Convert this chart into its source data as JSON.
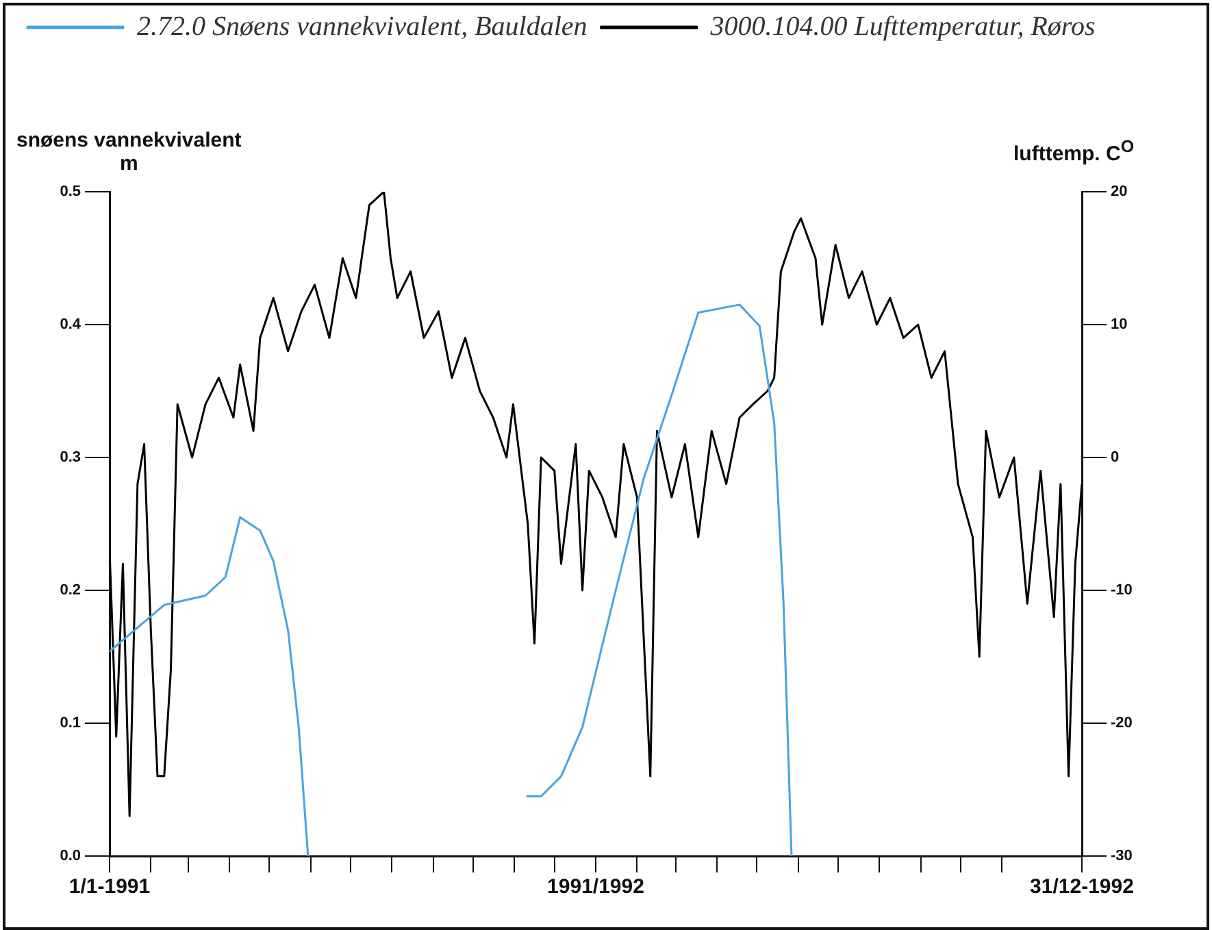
{
  "chart_data": {
    "type": "line",
    "ylabel": "snøens vannekvivalent\nm",
    "y2label": "lufttemp. C$^{O}$",
    "legend": "top left",
    "grid": false,
    "marker": "none",
    "line_style": "solid",
    "xlim": [
      "1991-01-01",
      "1992-12-31"
    ],
    "xticks": [
      {
        "value": "1991-01-01",
        "label": "1/1-1991"
      },
      {
        "value": "1991-02-01",
        "label": null
      },
      {
        "value": "1991-03-01",
        "label": null
      },
      {
        "value": "1991-04-01",
        "label": null
      },
      {
        "value": "1991-05-01",
        "label": null
      },
      {
        "value": "1991-06-01",
        "label": null
      },
      {
        "value": "1991-07-01",
        "label": null
      },
      {
        "value": "1991-08-01",
        "label": null
      },
      {
        "value": "1991-09-01",
        "label": null
      },
      {
        "value": "1991-10-01",
        "label": null
      },
      {
        "value": "1991-11-01",
        "label": null
      },
      {
        "value": "1991-12-01",
        "label": null
      },
      {
        "value": "1992-01-01",
        "label": "1991/1992"
      },
      {
        "value": "1992-02-01",
        "label": null
      },
      {
        "value": "1992-03-01",
        "label": null
      },
      {
        "value": "1992-04-01",
        "label": null
      },
      {
        "value": "1992-05-01",
        "label": null
      },
      {
        "value": "1992-06-01",
        "label": null
      },
      {
        "value": "1992-07-01",
        "label": null
      },
      {
        "value": "1992-08-01",
        "label": null
      },
      {
        "value": "1992-09-01",
        "label": null
      },
      {
        "value": "1992-10-01",
        "label": null
      },
      {
        "value": "1992-11-01",
        "label": null
      },
      {
        "value": "1992-12-31",
        "label": "31/12-1992"
      }
    ],
    "ylim": [
      0,
      0.5
    ],
    "yticks": [
      {
        "value": 0,
        "label": "0.0"
      },
      {
        "value": 0.1,
        "label": "0.1"
      },
      {
        "value": 0.2,
        "label": "0.2"
      },
      {
        "value": 0.3,
        "label": "0.3"
      },
      {
        "value": 0.4,
        "label": "0.4"
      },
      {
        "value": 0.5,
        "label": "0.5"
      }
    ],
    "y2lim": [
      -30,
      20
    ],
    "y2ticks": [
      -30,
      -20,
      -10,
      0,
      10,
      20
    ],
    "series": [
      {
        "name": "2.72.0 Snøens vannekvivalent, Bauldalen",
        "color": "#4aa3df",
        "x": [
          "1991-01-01",
          "1991-02-11",
          "1991-03-14",
          "1991-03-29",
          "1991-04-09",
          "1991-04-24",
          "1991-05-04",
          "1991-05-15",
          "1991-05-23",
          "1991-05-30",
          "1991-08-01",
          "1991-11-10",
          "1991-11-21",
          "1991-12-06",
          "1991-12-22",
          "1992-01-06",
          "1992-01-16",
          "1992-02-06",
          "1992-02-27",
          "1992-03-18",
          "1992-04-18",
          "1992-05-03",
          "1992-05-14",
          "1992-05-21",
          "1992-05-27"
        ],
        "values": [
          0.154,
          0.189,
          0.196,
          0.21,
          0.255,
          0.245,
          0.222,
          0.17,
          0.097,
          0,
          null,
          0.045,
          0.045,
          0.06,
          0.097,
          0.159,
          0.2,
          0.284,
          0.347,
          0.409,
          0.415,
          0.399,
          0.326,
          0.19,
          0
        ]
      },
      {
        "name": "3000.104.00 Lufttemperatur, Røros",
        "color": "#000000",
        "axis": "y2",
        "x": [
          "1991-01-01",
          "1991-01-06",
          "1991-01-11",
          "1991-01-16",
          "1991-01-22",
          "1991-01-27",
          "1991-02-01",
          "1991-02-06",
          "1991-02-11",
          "1991-02-16",
          "1991-02-21",
          "1991-03-04",
          "1991-03-14",
          "1991-03-24",
          "1991-04-04",
          "1991-04-09",
          "1991-04-19",
          "1991-04-24",
          "1991-05-04",
          "1991-05-15",
          "1991-05-25",
          "1991-06-04",
          "1991-06-15",
          "1991-06-25",
          "1991-07-05",
          "1991-07-15",
          "1991-07-26",
          "1991-07-31",
          "1991-08-05",
          "1991-08-15",
          "1991-08-25",
          "1991-09-05",
          "1991-09-15",
          "1991-09-25",
          "1991-10-06",
          "1991-10-16",
          "1991-10-26",
          "1991-10-31",
          "1991-11-11",
          "1991-11-16",
          "1991-11-21",
          "1991-12-01",
          "1991-12-06",
          "1991-12-17",
          "1991-12-22",
          "1991-12-27",
          "1992-01-06",
          "1992-01-16",
          "1992-01-22",
          "1992-02-01",
          "1992-02-11",
          "1992-02-16",
          "1992-02-27",
          "1992-03-08",
          "1992-03-18",
          "1992-03-28",
          "1992-04-08",
          "1992-04-18",
          "1992-04-28",
          "1992-05-09",
          "1992-05-14",
          "1992-05-19",
          "1992-05-29",
          "1992-06-03",
          "1992-06-14",
          "1992-06-19",
          "1992-06-29",
          "1992-07-09",
          "1992-07-19",
          "1992-07-30",
          "1992-08-09",
          "1992-08-19",
          "1992-08-30",
          "1992-09-09",
          "1992-09-19",
          "1992-09-29",
          "1992-10-10",
          "1992-10-15",
          "1992-10-20",
          "1992-10-30",
          "1992-11-10",
          "1992-11-20",
          "1992-11-30",
          "1992-12-10",
          "1992-12-15",
          "1992-12-21",
          "1992-12-26",
          "1992-12-31"
        ],
        "values": [
          -7,
          -21,
          -8,
          -27,
          -2,
          1,
          -13,
          -24,
          -24,
          -16,
          4,
          0,
          4,
          6,
          3,
          7,
          2,
          9,
          12,
          8,
          11,
          13,
          9,
          15,
          12,
          19,
          20,
          15,
          12,
          14,
          9,
          11,
          6,
          9,
          5,
          3,
          0,
          4,
          -5,
          -14,
          0,
          -1,
          -8,
          1,
          -10,
          -1,
          -3,
          -6,
          1,
          -3,
          -24,
          2,
          -3,
          1,
          -6,
          2,
          -2,
          3,
          4,
          5,
          6,
          14,
          17,
          18,
          15,
          10,
          16,
          12,
          14,
          10,
          12,
          9,
          10,
          6,
          8,
          -2,
          -6,
          -15,
          2,
          -3,
          0,
          -11,
          -1,
          -12,
          -2,
          -24,
          -8,
          -2
        ]
      }
    ]
  }
}
